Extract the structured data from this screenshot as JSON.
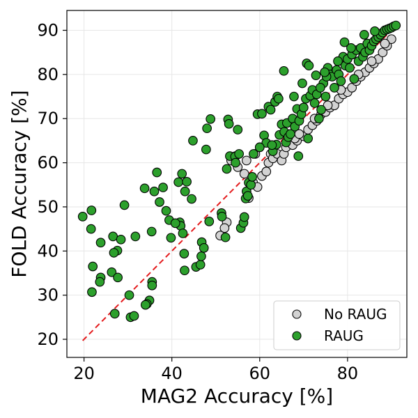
{
  "chart_data": {
    "type": "scatter",
    "title": "",
    "xlabel": "MAG2 Accuracy [%]",
    "ylabel": "FOLD Accuracy [%]",
    "xlim": [
      16.1,
      93.5
    ],
    "ylim": [
      15.9,
      94.5
    ],
    "xticks": [
      "20",
      "40",
      "60",
      "80"
    ],
    "yticks": [
      "20",
      "30",
      "40",
      "50",
      "60",
      "70",
      "80",
      "90"
    ],
    "grid": true,
    "legend_position": "lower-right",
    "reference_line": {
      "style": "dashed",
      "color": "#e41a1c",
      "x": [
        19.7,
        91
      ],
      "y": [
        19.7,
        91
      ]
    },
    "series": [
      {
        "name": "No RAUG",
        "color": "#d3d3d3",
        "edge": "#000000",
        "points": [
          [
            52.5,
            46.5
          ],
          [
            52.0,
            45.2
          ],
          [
            51.0,
            43.5
          ],
          [
            55.0,
            59.0
          ],
          [
            56.5,
            57.5
          ],
          [
            57.5,
            52.0
          ],
          [
            58.5,
            55.5
          ],
          [
            59.5,
            54.5
          ],
          [
            60.5,
            57.0
          ],
          [
            61.5,
            58.0
          ],
          [
            62.0,
            60.0
          ],
          [
            59.0,
            62.0
          ],
          [
            60.0,
            63.5
          ],
          [
            62.5,
            62.0
          ],
          [
            63.0,
            61.0
          ],
          [
            64.0,
            62.0
          ],
          [
            65.0,
            60.5
          ],
          [
            65.5,
            62.0
          ],
          [
            66.0,
            63.5
          ],
          [
            67.5,
            64.0
          ],
          [
            68.5,
            65.0
          ],
          [
            70.0,
            66.0
          ],
          [
            71.0,
            67.5
          ],
          [
            72.0,
            68.5
          ],
          [
            73.0,
            69.5
          ],
          [
            74.0,
            71.0
          ],
          [
            75.0,
            71.5
          ],
          [
            76.0,
            72.5
          ],
          [
            77.0,
            73.0
          ],
          [
            78.0,
            74.5
          ],
          [
            79.0,
            75.5
          ],
          [
            80.0,
            76.0
          ],
          [
            81.0,
            77.0
          ],
          [
            82.0,
            78.5
          ],
          [
            83.0,
            79.5
          ],
          [
            84.0,
            80.5
          ],
          [
            85.0,
            81.5
          ],
          [
            86.0,
            82.5
          ],
          [
            87.0,
            83.5
          ],
          [
            88.0,
            85.0
          ],
          [
            89.0,
            86.5
          ],
          [
            90.0,
            88.0
          ],
          [
            68.0,
            65.5
          ],
          [
            69.0,
            66.5
          ],
          [
            72.5,
            70.0
          ],
          [
            75.5,
            73.0
          ],
          [
            78.5,
            76.5
          ],
          [
            82.5,
            80.0
          ],
          [
            85.5,
            83.0
          ],
          [
            88.5,
            87.0
          ],
          [
            53.5,
            60.5
          ],
          [
            54.5,
            61.5
          ],
          [
            57.0,
            60.5
          ]
        ]
      },
      {
        "name": "RAUG",
        "color": "#2ca02c",
        "edge": "#000000",
        "points": [
          [
            19.7,
            47.8
          ],
          [
            21.7,
            49.2
          ],
          [
            21.6,
            45.0
          ],
          [
            23.8,
            41.9
          ],
          [
            22.0,
            36.5
          ],
          [
            23.8,
            34.0
          ],
          [
            23.6,
            33.0
          ],
          [
            21.8,
            30.7
          ],
          [
            26.6,
            43.3
          ],
          [
            27.6,
            40.1
          ],
          [
            26.8,
            39.6
          ],
          [
            28.4,
            42.6
          ],
          [
            26.3,
            35.2
          ],
          [
            27.7,
            34.0
          ],
          [
            29.2,
            50.4
          ],
          [
            31.7,
            43.3
          ],
          [
            30.3,
            30.0
          ],
          [
            30.6,
            25.0
          ],
          [
            31.4,
            25.3
          ],
          [
            27.0,
            25.8
          ],
          [
            33.8,
            54.2
          ],
          [
            36.6,
            57.8
          ],
          [
            36.0,
            53.5
          ],
          [
            38.0,
            54.4
          ],
          [
            37.2,
            51.1
          ],
          [
            38.7,
            49.1
          ],
          [
            35.4,
            44.4
          ],
          [
            39.4,
            47.0
          ],
          [
            41.8,
            46.5
          ],
          [
            42.0,
            45.7
          ],
          [
            40.8,
            46.3
          ],
          [
            39.8,
            43.0
          ],
          [
            35.5,
            33.0
          ],
          [
            35.5,
            32.2
          ],
          [
            34.9,
            28.8
          ],
          [
            34.3,
            28.0
          ],
          [
            34.0,
            27.8
          ],
          [
            42.3,
            57.5
          ],
          [
            41.5,
            55.6
          ],
          [
            43.4,
            55.7
          ],
          [
            43.0,
            53.5
          ],
          [
            44.5,
            51.8
          ],
          [
            42.5,
            44.0
          ],
          [
            42.8,
            39.4
          ],
          [
            42.9,
            35.6
          ],
          [
            44.8,
            65.0
          ],
          [
            47.8,
            63.0
          ],
          [
            48.0,
            67.8
          ],
          [
            48.8,
            69.9
          ],
          [
            45.5,
            36.4
          ],
          [
            46.5,
            36.9
          ],
          [
            46.7,
            38.8
          ],
          [
            46.8,
            42.0
          ],
          [
            47.3,
            40.7
          ],
          [
            48.5,
            46.7
          ],
          [
            51.3,
            48.6
          ],
          [
            51.4,
            47.8
          ],
          [
            52.2,
            43.1
          ],
          [
            52.5,
            58.6
          ],
          [
            52.8,
            69.8
          ],
          [
            53.0,
            68.8
          ],
          [
            55.0,
            67.5
          ],
          [
            53.2,
            61.5
          ],
          [
            54.4,
            61.4
          ],
          [
            54.5,
            60.0
          ],
          [
            55.3,
            62.0
          ],
          [
            55.7,
            45.2
          ],
          [
            56.3,
            46.4
          ],
          [
            56.5,
            47.7
          ],
          [
            56.8,
            51.9
          ],
          [
            57.0,
            53.5
          ],
          [
            57.3,
            52.5
          ],
          [
            57.5,
            55.5
          ],
          [
            58.0,
            55.0
          ],
          [
            58.3,
            56.8
          ],
          [
            58.6,
            62.0
          ],
          [
            59.5,
            71.0
          ],
          [
            60.5,
            71.1
          ],
          [
            61.0,
            66.2
          ],
          [
            61.5,
            64.5
          ],
          [
            62.0,
            72.7
          ],
          [
            62.5,
            72.0
          ],
          [
            63.5,
            73.8
          ],
          [
            64.0,
            75.0
          ],
          [
            64.3,
            74.5
          ],
          [
            63.0,
            62.6
          ],
          [
            63.8,
            64.1
          ],
          [
            64.5,
            66.3
          ],
          [
            65.0,
            68.7
          ],
          [
            65.5,
            80.8
          ],
          [
            65.6,
            67.0
          ],
          [
            66.2,
            69.0
          ],
          [
            66.0,
            64.6
          ],
          [
            66.5,
            65.8
          ],
          [
            67.0,
            66.5
          ],
          [
            67.5,
            70.0
          ],
          [
            68.0,
            68.2
          ],
          [
            68.5,
            72.2
          ],
          [
            68.8,
            61.5
          ],
          [
            69.0,
            69.5
          ],
          [
            69.5,
            71.0
          ],
          [
            70.0,
            72.5
          ],
          [
            70.5,
            74.5
          ],
          [
            70.7,
            82.5
          ],
          [
            71.2,
            82.0
          ],
          [
            71.0,
            65.5
          ],
          [
            71.5,
            75.2
          ],
          [
            72.0,
            76.5
          ],
          [
            72.5,
            73.5
          ],
          [
            73.0,
            75.5
          ],
          [
            73.5,
            70.0
          ],
          [
            74.0,
            72.0
          ],
          [
            74.5,
            78.0
          ],
          [
            75.0,
            75.0
          ],
          [
            75.5,
            81.5
          ],
          [
            76.0,
            80.0
          ],
          [
            76.5,
            79.5
          ],
          [
            77.0,
            77.0
          ],
          [
            77.5,
            81.0
          ],
          [
            78.0,
            80.0
          ],
          [
            78.5,
            78.5
          ],
          [
            79.0,
            84.0
          ],
          [
            79.3,
            87.3
          ],
          [
            79.5,
            82.0
          ],
          [
            80.0,
            83.5
          ],
          [
            80.5,
            81.5
          ],
          [
            81.0,
            84.5
          ],
          [
            81.5,
            79.0
          ],
          [
            82.0,
            85.5
          ],
          [
            82.5,
            83.0
          ],
          [
            83.0,
            86.0
          ],
          [
            83.5,
            84.0
          ],
          [
            84.0,
            85.0
          ],
          [
            84.5,
            87.0
          ],
          [
            85.0,
            85.5
          ],
          [
            85.5,
            86.5
          ],
          [
            86.0,
            87.5
          ],
          [
            86.5,
            88.0
          ],
          [
            87.0,
            88.5
          ],
          [
            87.5,
            89.0
          ],
          [
            88.0,
            89.5
          ],
          [
            88.5,
            90.0
          ],
          [
            89.0,
            90.2
          ],
          [
            89.5,
            90.4
          ],
          [
            90.0,
            90.6
          ],
          [
            90.5,
            90.9
          ],
          [
            91.0,
            91.1
          ],
          [
            75.2,
            79.5
          ],
          [
            73.8,
            77.0
          ],
          [
            77.8,
            83.0
          ],
          [
            80.8,
            86.0
          ],
          [
            83.8,
            89.0
          ],
          [
            86.2,
            89.8
          ],
          [
            67.8,
            75.0
          ],
          [
            69.7,
            78.0
          ],
          [
            72.8,
            79.8
          ],
          [
            74.8,
            80.5
          ],
          [
            60.0,
            63.5
          ],
          [
            62.8,
            64.0
          ]
        ]
      }
    ]
  }
}
